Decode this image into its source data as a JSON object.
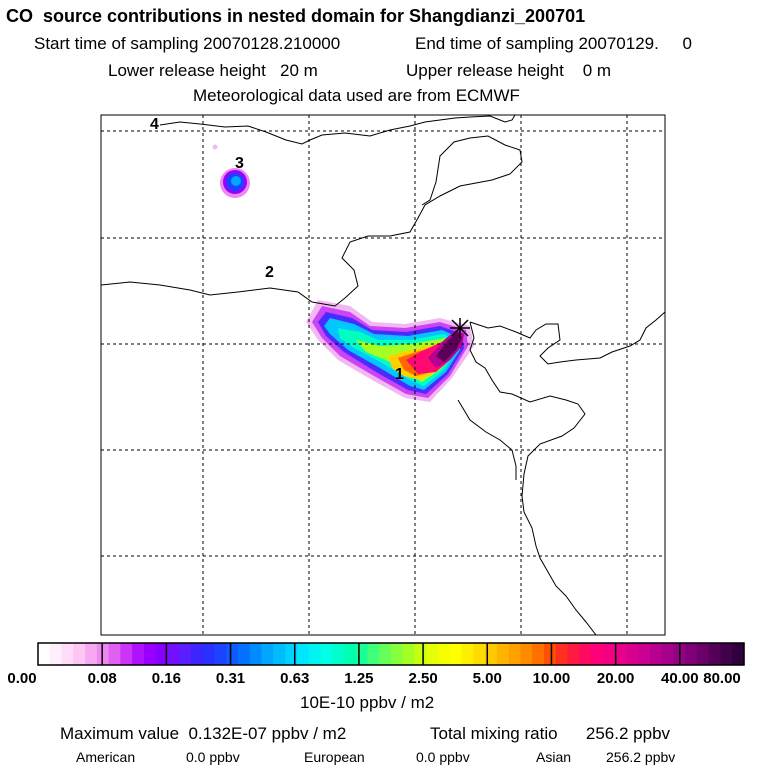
{
  "header": {
    "title": "CO  source contributions in nested domain for Shangdianzi_200701",
    "start_sampling": "Start time of sampling 20070128.210000",
    "end_sampling": "End time of sampling 20070129.     0",
    "lower_release": "Lower release height   20 m",
    "upper_release": "Upper release height    0 m",
    "met_data": "Meteorological data used are from ECMWF"
  },
  "map": {
    "region_labels": [
      "1",
      "2",
      "3",
      "4"
    ],
    "station_marker": "cross-icon"
  },
  "legend": {
    "ticks": [
      "0.00",
      "0.08",
      "0.16",
      "0.31",
      "0.63",
      "1.25",
      "2.50",
      "5.00",
      "10.00",
      "20.00",
      "40.00",
      "80.00"
    ],
    "unit": "10E-10 ppbv / m2",
    "colors": [
      "#ffffff",
      "#ffeefc",
      "#ffdcf8",
      "#ffc6f4",
      "#f7a8f2",
      "#ee88f0",
      "#e060f4",
      "#cc34f8",
      "#b012fc",
      "#9a00ff",
      "#8800ff",
      "#7410ff",
      "#5a1eff",
      "#3e24ff",
      "#2a30ff",
      "#1c44ff",
      "#0e5cff",
      "#0472ff",
      "#008cff",
      "#00a6ff",
      "#00bcff",
      "#00d2ff",
      "#00e6ff",
      "#00f4f4",
      "#00ffe4",
      "#00ffcc",
      "#00ffb0",
      "#18ff96",
      "#40ff78",
      "#66ff5a",
      "#88ff3c",
      "#a6ff22",
      "#c6ff10",
      "#e4ff08",
      "#f6ff00",
      "#ffff00",
      "#ffee00",
      "#ffdc00",
      "#ffc800",
      "#ffb400",
      "#ffa000",
      "#ff8a00",
      "#ff7000",
      "#ff5000",
      "#ff3020",
      "#ff1a40",
      "#ff0a60",
      "#ff0078",
      "#f40082",
      "#e6008a",
      "#d8008e",
      "#ca0090",
      "#b80090",
      "#a6008c",
      "#940084",
      "#80007a",
      "#6a006a",
      "#540058",
      "#40004a",
      "#30003c"
    ]
  },
  "footer": {
    "max_value": "Maximum value  0.132E-07 ppbv / m2",
    "total_mixing": "Total mixing ratio      256.2 ppbv",
    "american_label": "American",
    "american_value": "0.0 ppbv",
    "european_label": "European",
    "european_value": "0.0 ppbv",
    "asian_label": "Asian",
    "asian_value": "256.2 ppbv"
  }
}
